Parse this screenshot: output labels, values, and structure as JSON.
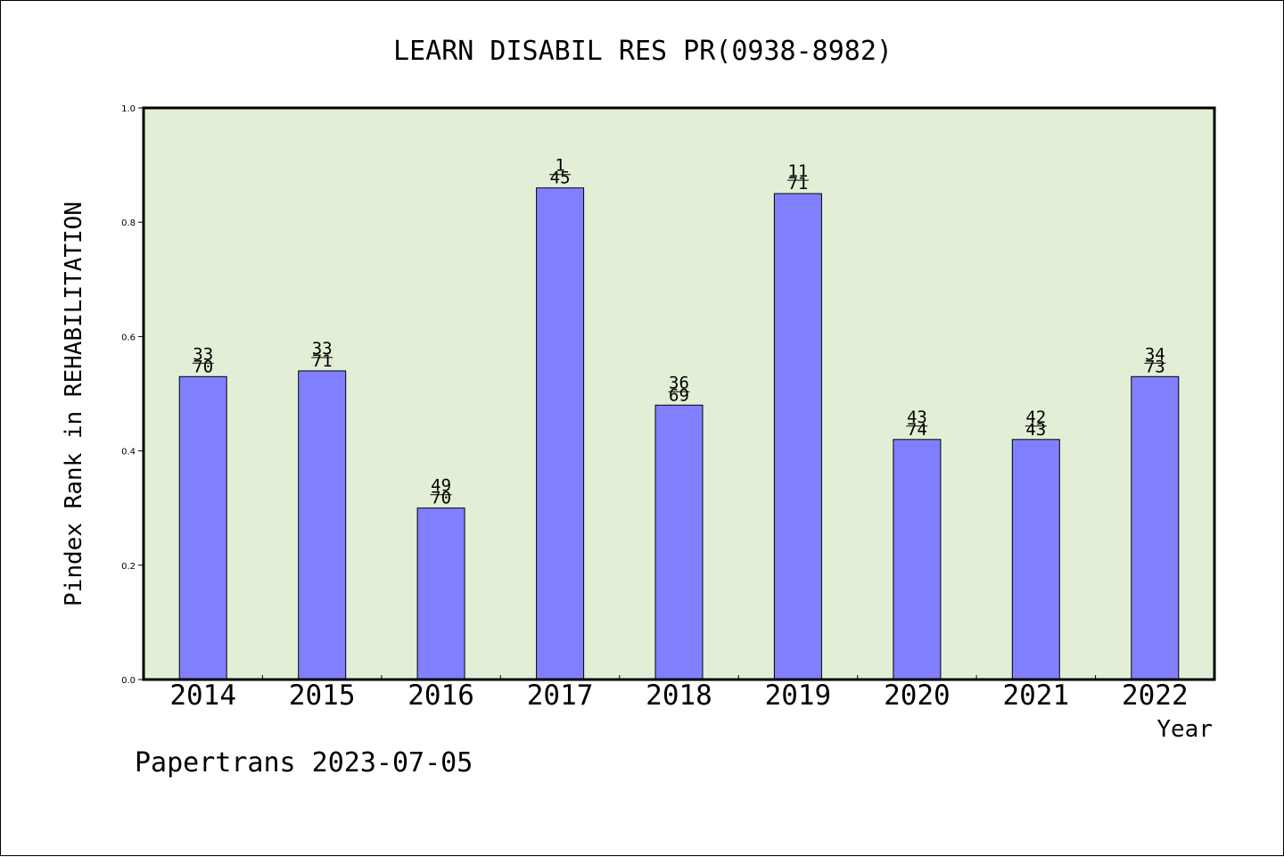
{
  "chart_data": {
    "type": "bar",
    "title": "LEARN DISABIL RES PR(0938-8982)",
    "xlabel": "Year",
    "ylabel": "Pindex Rank in REHABILITATION",
    "categories": [
      "2014",
      "2015",
      "2016",
      "2017",
      "2018",
      "2019",
      "2020",
      "2021",
      "2022"
    ],
    "values": [
      0.53,
      0.54,
      0.3,
      0.86,
      0.48,
      0.85,
      0.42,
      0.42,
      0.53
    ],
    "bar_labels": [
      {
        "top": "33",
        "bottom": "70"
      },
      {
        "top": "33",
        "bottom": "71"
      },
      {
        "top": "49",
        "bottom": "70"
      },
      {
        "top": "1",
        "bottom": "45"
      },
      {
        "top": "36",
        "bottom": "69"
      },
      {
        "top": "11",
        "bottom": "71"
      },
      {
        "top": "43",
        "bottom": "74"
      },
      {
        "top": "42",
        "bottom": "43"
      },
      {
        "top": "34",
        "bottom": "73"
      }
    ],
    "ylim": [
      0,
      1.0
    ],
    "yticks": [
      "0.0",
      "0.2",
      "0.4",
      "0.6",
      "0.8",
      "1.0"
    ],
    "grid": false,
    "colors": {
      "plot_background": "#e2efd6",
      "bar_fill": "#8080ff",
      "bar_stroke": "#000000"
    }
  },
  "footer": "Papertrans 2023-07-05"
}
